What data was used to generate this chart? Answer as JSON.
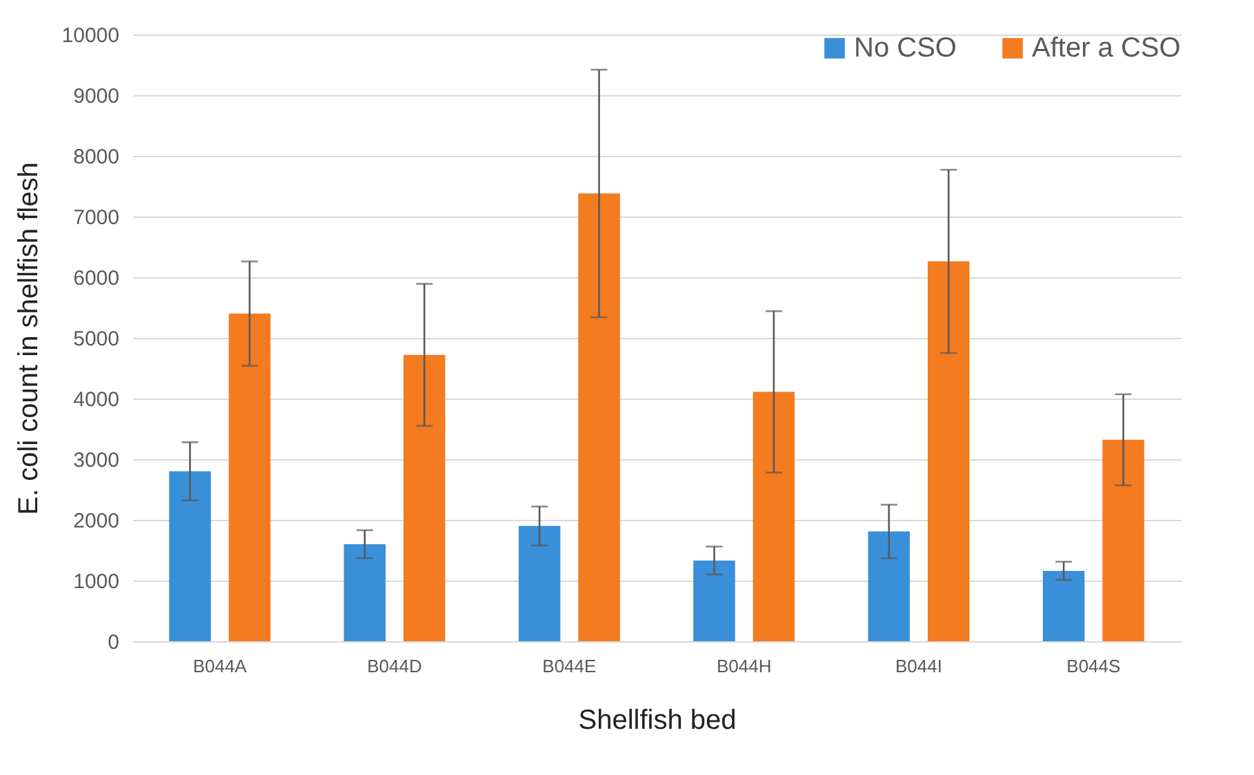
{
  "chart_data": {
    "type": "bar",
    "xlabel": "Shellfish bed",
    "ylabel": "E. coli count in shellfish flesh",
    "categories": [
      "B044A",
      "B044D",
      "B044E",
      "B044H",
      "B044I",
      "B044S"
    ],
    "series": [
      {
        "name": "No CSO",
        "color": "#3a8fd9",
        "values": [
          2800,
          1600,
          1900,
          1330,
          1810,
          1160
        ],
        "errors": [
          480,
          230,
          320,
          230,
          440,
          150
        ]
      },
      {
        "name": "After a CSO",
        "color": "#f47b20",
        "values": [
          5400,
          4720,
          7380,
          4110,
          6260,
          3320
        ],
        "errors": [
          860,
          1170,
          2040,
          1330,
          1510,
          750
        ]
      }
    ],
    "ylim": [
      0,
      10000
    ],
    "yticks": [
      0,
      1000,
      2000,
      3000,
      4000,
      5000,
      6000,
      7000,
      8000,
      9000,
      10000
    ],
    "grid": "y",
    "legend": "top right"
  }
}
